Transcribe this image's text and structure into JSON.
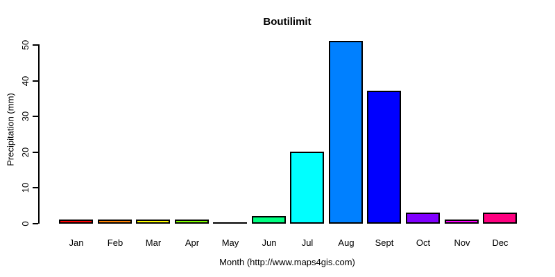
{
  "chart_data": {
    "type": "bar",
    "title": "Boutilimit",
    "xlabel": "Month (http://www.maps4gis.com)",
    "ylabel": "Precipitation (mm)",
    "categories": [
      "Jan",
      "Feb",
      "Mar",
      "Apr",
      "May",
      "Jun",
      "Jul",
      "Aug",
      "Sept",
      "Oct",
      "Nov",
      "Dec"
    ],
    "values": [
      1,
      1,
      1,
      1,
      0,
      2,
      20,
      51,
      37,
      3,
      1,
      3
    ],
    "bar_colors": [
      "#FF0000",
      "#FF8000",
      "#FFFF00",
      "#80FF00",
      "#00FF00",
      "#00FF80",
      "#00FFFF",
      "#0080FF",
      "#0000FF",
      "#8000FF",
      "#FF00FF",
      "#FF0080"
    ],
    "bar_border_color": "#000000",
    "axis_color": "#000000",
    "text_color": "#000000",
    "background_color": "#FFFFFF",
    "ylim": [
      0,
      50
    ],
    "yticks": [
      0,
      10,
      20,
      30,
      40,
      50
    ],
    "grid": false,
    "legend": null
  }
}
